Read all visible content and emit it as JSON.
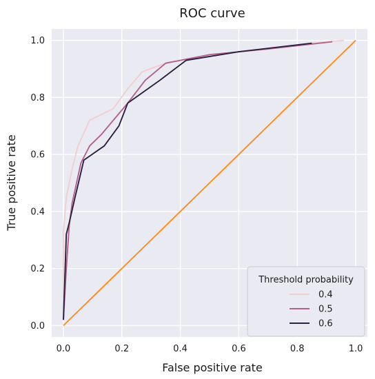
{
  "chart_data": {
    "type": "line",
    "title": "ROC curve",
    "xlabel": "False positive rate",
    "ylabel": "True positive rate",
    "xlim": [
      -0.04,
      1.04
    ],
    "ylim": [
      -0.04,
      1.04
    ],
    "xticks": [
      0.0,
      0.2,
      0.4,
      0.6,
      0.8,
      1.0
    ],
    "xtick_labels": [
      "0.0",
      "0.2",
      "0.4",
      "0.6",
      "0.8",
      "1.0"
    ],
    "yticks": [
      0.0,
      0.2,
      0.4,
      0.6,
      0.8,
      1.0
    ],
    "ytick_labels": [
      "0.0",
      "0.2",
      "0.4",
      "0.6",
      "0.8",
      "1.0"
    ],
    "grid": true,
    "background": "#eaeaf2",
    "grid_color": "#ffffff",
    "legend": {
      "title": "Threshold probability",
      "placement": "lower-right"
    },
    "series": [
      {
        "name": "0.4",
        "color": "#f2cfcf",
        "x": [
          0.0,
          0.0,
          0.01,
          0.03,
          0.05,
          0.09,
          0.17,
          0.22,
          0.27,
          0.35,
          0.5,
          0.7,
          0.85,
          0.96
        ],
        "y": [
          0.02,
          0.33,
          0.45,
          0.55,
          0.63,
          0.72,
          0.76,
          0.83,
          0.89,
          0.92,
          0.95,
          0.97,
          0.99,
          1.0
        ]
      },
      {
        "name": "0.5",
        "color": "#b3628c",
        "x": [
          0.0,
          0.01,
          0.02,
          0.03,
          0.06,
          0.09,
          0.13,
          0.22,
          0.28,
          0.35,
          0.5,
          0.7,
          0.92
        ],
        "y": [
          0.02,
          0.2,
          0.35,
          0.43,
          0.57,
          0.63,
          0.67,
          0.78,
          0.86,
          0.92,
          0.95,
          0.97,
          0.995
        ]
      },
      {
        "name": "0.6",
        "color": "#2d1f3f",
        "x": [
          0.0,
          0.01,
          0.02,
          0.04,
          0.07,
          0.14,
          0.19,
          0.22,
          0.33,
          0.42,
          0.6,
          0.85
        ],
        "y": [
          0.02,
          0.32,
          0.36,
          0.45,
          0.58,
          0.63,
          0.7,
          0.78,
          0.86,
          0.93,
          0.96,
          0.99
        ]
      },
      {
        "color": "#ff8c1a",
        "x": [
          0.0,
          1.0
        ],
        "y": [
          0.0,
          1.0
        ]
      }
    ]
  }
}
